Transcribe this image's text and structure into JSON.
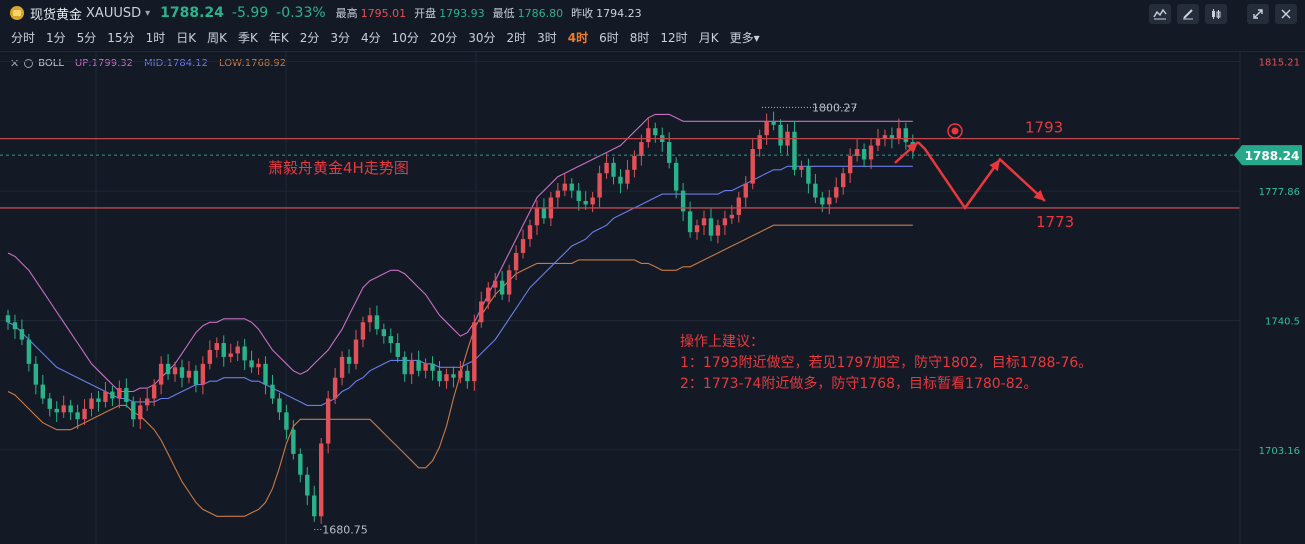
{
  "header": {
    "symbol_name": "现货黄金",
    "symbol_code": "XAUUSD",
    "caret": "▾",
    "last_price": "1788.24",
    "change": "-5.99",
    "change_pct": "-0.33%",
    "high_label": "最高",
    "high": "1795.01",
    "open_label": "开盘",
    "open": "1793.93",
    "low_label": "最低",
    "low": "1786.80",
    "prev_close_label": "昨收",
    "prev_close": "1794.23"
  },
  "toolbar": {
    "icons": [
      "indicator-icon",
      "draw-icon",
      "candle-type-icon",
      "fullscreen-icon",
      "close-icon"
    ]
  },
  "timeframes": {
    "items": [
      "分时",
      "1分",
      "5分",
      "15分",
      "1时",
      "日K",
      "周K",
      "季K",
      "年K",
      "2分",
      "3分",
      "4分",
      "10分",
      "20分",
      "30分",
      "2时",
      "3时",
      "4时",
      "6时",
      "8时",
      "12时",
      "月K",
      "更多▾"
    ],
    "active": "4时"
  },
  "indicator": {
    "name": "BOLL",
    "up": "UP:1799.32",
    "mid": "MID:1784.12",
    "low": "LOW:1768.92"
  },
  "colors": {
    "background": "#131a26",
    "up_candle": "#e25157",
    "down_candle": "#29b38b",
    "boll_up": "#c86fc4",
    "boll_mid": "#6a7ee8",
    "boll_low": "#c87a45",
    "annotation": "#e8383d"
  },
  "chart_data": {
    "type": "candlestick",
    "ylim": [
      1676,
      1818
    ],
    "y_ticks": [
      "1815.21",
      "1777.86",
      "1740.5",
      "1703.16"
    ],
    "last_price_label": "1788.24",
    "max_label": "1800.27",
    "min_label": "1680.75",
    "hlines": [
      {
        "value": 1793,
        "label": "1793"
      },
      {
        "value": 1773,
        "label": "1773"
      }
    ],
    "chart_title": "萧毅舟黄金4H走势图",
    "advice": [
      "操作上建议：",
      "1：1793附近做空，若见1797加空，防守1802，目标1788-76。",
      "2：1773-74附近做多，防守1768，目标暂看1780-82。"
    ],
    "forecast_path": [
      [
        0,
        1786
      ],
      [
        1,
        1792
      ],
      [
        2,
        1790
      ],
      [
        3,
        1773
      ],
      [
        4,
        1787
      ],
      [
        5,
        1775
      ]
    ],
    "closes": [
      1740,
      1738,
      1735,
      1728,
      1722,
      1718,
      1715,
      1714,
      1716,
      1714,
      1712,
      1715,
      1718,
      1717,
      1720,
      1718,
      1721,
      1717,
      1712,
      1716,
      1718,
      1722,
      1728,
      1725,
      1727,
      1724,
      1726,
      1722,
      1728,
      1732,
      1734,
      1730,
      1731,
      1733,
      1729,
      1727,
      1728,
      1722,
      1718,
      1714,
      1709,
      1702,
      1696,
      1690,
      1684,
      1705,
      1718,
      1724,
      1730,
      1728,
      1735,
      1740,
      1742,
      1738,
      1736,
      1734,
      1730,
      1725,
      1729,
      1726,
      1728,
      1726,
      1723,
      1725,
      1724,
      1726,
      1723,
      1740,
      1746,
      1750,
      1752,
      1748,
      1755,
      1760,
      1764,
      1768,
      1773,
      1770,
      1776,
      1778,
      1780,
      1778,
      1775,
      1774,
      1776,
      1783,
      1786,
      1782,
      1780,
      1784,
      1788,
      1792,
      1796,
      1794,
      1792,
      1786,
      1778,
      1772,
      1766,
      1768,
      1770,
      1765,
      1768,
      1770,
      1771,
      1776,
      1780,
      1790,
      1794,
      1798,
      1797,
      1791,
      1795,
      1784,
      1785,
      1780,
      1776,
      1774,
      1776,
      1779,
      1783,
      1788,
      1790,
      1787,
      1791,
      1793,
      1794,
      1793,
      1796,
      1792,
      1790
    ],
    "boll_up_vals": [
      1760,
      1759,
      1757,
      1755,
      1752,
      1749,
      1746,
      1743,
      1740,
      1737,
      1734,
      1731,
      1728,
      1726,
      1724,
      1722,
      1720,
      1720,
      1720,
      1721,
      1721,
      1722,
      1724,
      1726,
      1728,
      1731,
      1734,
      1737,
      1739,
      1740,
      1740,
      1741,
      1741,
      1741,
      1741,
      1740,
      1738,
      1735,
      1732,
      1730,
      1728,
      1726,
      1725,
      1726,
      1728,
      1730,
      1732,
      1735,
      1738,
      1742,
      1746,
      1750,
      1752,
      1753,
      1754,
      1755,
      1755,
      1754,
      1752,
      1750,
      1748,
      1745,
      1742,
      1740,
      1738,
      1736,
      1737,
      1740,
      1744,
      1748,
      1752,
      1756,
      1760,
      1764,
      1768,
      1772,
      1776,
      1778,
      1780,
      1782,
      1783,
      1784,
      1785,
      1786,
      1787,
      1788,
      1789,
      1790,
      1791,
      1793,
      1795,
      1797,
      1799,
      1800,
      1800,
      1800,
      1799,
      1798,
      1798,
      1798,
      1798,
      1798,
      1798,
      1798,
      1798,
      1798,
      1798,
      1798,
      1798,
      1798,
      1798,
      1798,
      1798,
      1798,
      1798,
      1798,
      1798,
      1798,
      1798,
      1798,
      1798,
      1798,
      1798,
      1798,
      1798,
      1798,
      1798,
      1798,
      1798,
      1798,
      1798
    ],
    "boll_mid_vals": [
      1740,
      1739,
      1737,
      1735,
      1733,
      1731,
      1729,
      1727,
      1726,
      1725,
      1724,
      1723,
      1722,
      1721,
      1720,
      1719,
      1718,
      1718,
      1717,
      1717,
      1717,
      1717,
      1718,
      1718,
      1719,
      1720,
      1721,
      1722,
      1722,
      1723,
      1723,
      1724,
      1724,
      1724,
      1724,
      1723,
      1723,
      1722,
      1721,
      1720,
      1719,
      1718,
      1717,
      1716,
      1716,
      1716,
      1717,
      1718,
      1720,
      1721,
      1723,
      1724,
      1726,
      1727,
      1728,
      1729,
      1729,
      1729,
      1729,
      1729,
      1728,
      1728,
      1727,
      1727,
      1727,
      1727,
      1728,
      1729,
      1731,
      1733,
      1735,
      1738,
      1741,
      1744,
      1747,
      1750,
      1752,
      1754,
      1756,
      1758,
      1760,
      1762,
      1763,
      1764,
      1766,
      1767,
      1768,
      1770,
      1771,
      1772,
      1773,
      1774,
      1775,
      1776,
      1777,
      1777,
      1777,
      1777,
      1777,
      1777,
      1777,
      1777,
      1777,
      1778,
      1778,
      1779,
      1780,
      1781,
      1782,
      1783,
      1784,
      1784,
      1785,
      1785,
      1785,
      1785,
      1785,
      1785,
      1785,
      1785,
      1785,
      1785,
      1785,
      1785,
      1785,
      1785,
      1785,
      1785,
      1785,
      1785,
      1785
    ],
    "boll_low_vals": [
      1720,
      1719,
      1717,
      1715,
      1713,
      1711,
      1710,
      1709,
      1709,
      1709,
      1710,
      1711,
      1712,
      1713,
      1714,
      1715,
      1716,
      1716,
      1714,
      1713,
      1711,
      1709,
      1706,
      1702,
      1698,
      1694,
      1691,
      1688,
      1686,
      1685,
      1684,
      1684,
      1684,
      1684,
      1684,
      1685,
      1686,
      1688,
      1692,
      1698,
      1705,
      1710,
      1712,
      1712,
      1712,
      1712,
      1712,
      1712,
      1712,
      1712,
      1712,
      1712,
      1712,
      1710,
      1708,
      1706,
      1704,
      1702,
      1700,
      1698,
      1698,
      1700,
      1704,
      1710,
      1718,
      1725,
      1732,
      1738,
      1742,
      1745,
      1748,
      1750,
      1752,
      1754,
      1755,
      1756,
      1757,
      1757,
      1757,
      1757,
      1757,
      1757,
      1758,
      1758,
      1758,
      1758,
      1758,
      1758,
      1758,
      1758,
      1758,
      1757,
      1757,
      1756,
      1755,
      1755,
      1755,
      1756,
      1756,
      1757,
      1758,
      1759,
      1760,
      1761,
      1762,
      1763,
      1764,
      1765,
      1766,
      1767,
      1768,
      1768,
      1768,
      1768,
      1768,
      1768,
      1768,
      1768,
      1768,
      1768,
      1768,
      1768,
      1768,
      1768,
      1768,
      1768,
      1768,
      1768,
      1768,
      1768,
      1768
    ]
  }
}
